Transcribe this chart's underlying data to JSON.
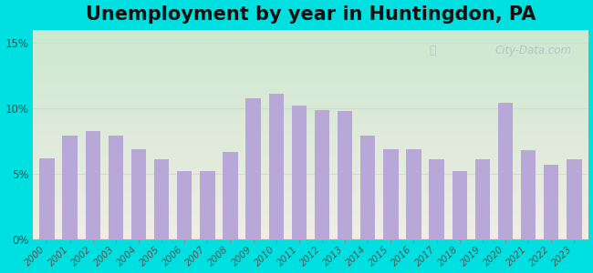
{
  "title": "Unemployment by year in Huntingdon, PA",
  "years": [
    2000,
    2001,
    2002,
    2003,
    2004,
    2005,
    2006,
    2007,
    2008,
    2009,
    2010,
    2011,
    2012,
    2013,
    2014,
    2015,
    2016,
    2017,
    2018,
    2019,
    2020,
    2021,
    2022,
    2023
  ],
  "values": [
    6.2,
    7.9,
    8.3,
    7.9,
    6.9,
    6.1,
    5.2,
    5.2,
    6.7,
    10.8,
    11.1,
    10.2,
    9.9,
    9.8,
    7.9,
    6.9,
    6.9,
    6.1,
    5.2,
    6.1,
    10.4,
    6.8,
    5.7,
    6.1
  ],
  "bar_color": "#b8a8d8",
  "grad_top": "#cce8d0",
  "grad_bottom": "#f0ede4",
  "outer_bg": "#00e0e0",
  "yticks": [
    0,
    5,
    10,
    15
  ],
  "ylim": [
    0,
    16
  ],
  "title_fontsize": 15,
  "tick_fontsize": 7.5,
  "watermark_text": "City-Data.com",
  "watermark_color": "#b0bfbf",
  "grid_color": "#d8d8d8"
}
